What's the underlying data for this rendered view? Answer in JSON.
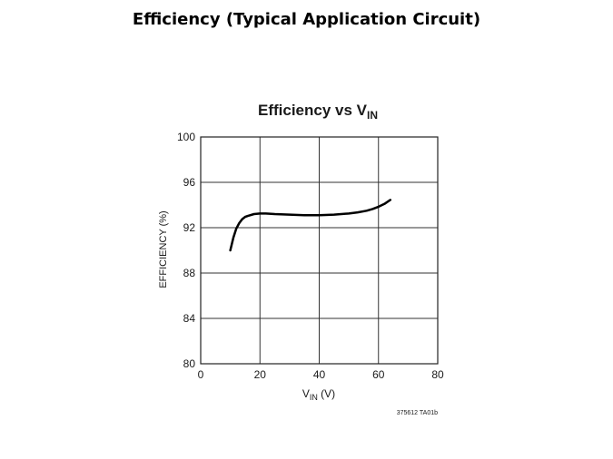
{
  "slide": {
    "title": "Efficiency (Typical Application Circuit)"
  },
  "chart_data": {
    "type": "line",
    "title_main": "Efficiency vs V",
    "title_sub": "IN",
    "xlabel_main": "V",
    "xlabel_sub": "IN",
    "xlabel_suffix": " (V)",
    "ylabel": "EFFICIENCY (%)",
    "xlim": [
      0,
      80
    ],
    "ylim": [
      80,
      100
    ],
    "x_ticks": [
      0,
      20,
      40,
      60,
      80
    ],
    "y_ticks": [
      80,
      84,
      88,
      92,
      96,
      100
    ],
    "x_tick_labels": [
      "0",
      "20",
      "40",
      "60",
      "80"
    ],
    "y_tick_labels": [
      "80",
      "84",
      "88",
      "92",
      "96",
      "100"
    ],
    "grid": true,
    "footnote": "375612 TA01b",
    "line_color": "#000000",
    "series": [
      {
        "x": [
          10,
          11,
          12,
          13,
          14,
          15,
          16,
          18,
          20,
          22,
          25,
          30,
          35,
          40,
          45,
          50,
          53,
          56,
          58,
          60,
          62,
          64
        ],
        "y": [
          90.0,
          91.1,
          91.9,
          92.4,
          92.75,
          92.95,
          93.05,
          93.2,
          93.25,
          93.25,
          93.2,
          93.15,
          93.1,
          93.1,
          93.15,
          93.25,
          93.35,
          93.5,
          93.65,
          93.85,
          94.1,
          94.45
        ]
      }
    ]
  }
}
